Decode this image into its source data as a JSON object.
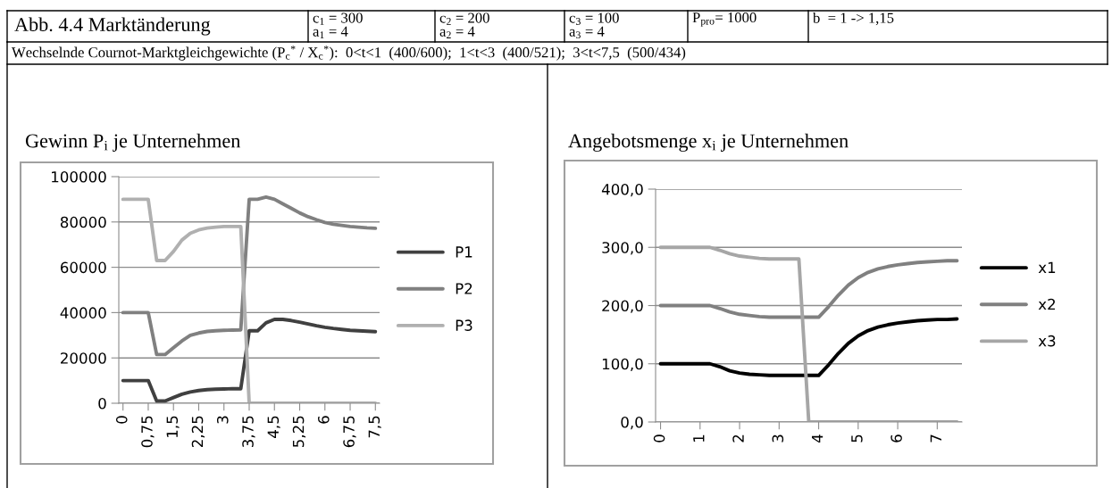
{
  "chart_data": [
    {
      "type": "other",
      "title": "Abb. 4.4 Marktänderung",
      "annotations": [
        "c$_{1}$ = 300\na$_{1}$ = 4",
        "c$_{2}$ = 200\na$_{2}$ = 4",
        "c$_{3}$ = 100\na$_{3}$ = 4",
        "P$_{pro}$= 1000",
        "b  = 1 -> 1,15",
        "Wechselnde Cournot-Marktgleichgewichte (P$_{c}$$^{*}$ / X$_{c}$$^{*}$):  0<t<1  (400/600);  1<t<3  (400/521);  3<t<7,5  (500/434)"
      ]
    },
    {
      "type": "line",
      "title": "Gewinn P$_{i}$ je Unternehmen",
      "x": [
        0,
        0.25,
        0.5,
        0.75,
        1,
        1.25,
        1.5,
        1.75,
        2,
        2.25,
        2.5,
        2.75,
        3,
        3.25,
        3.5,
        3.75,
        4,
        4.25,
        4.5,
        4.75,
        5,
        5.25,
        5.5,
        5.75,
        6,
        6.25,
        6.5,
        6.75,
        7,
        7.25,
        7.5
      ],
      "series": [
        {
          "name": "P1",
          "color": "#404040",
          "values": [
            10000,
            10000,
            10000,
            10000,
            1000,
            1000,
            2500,
            4000,
            5000,
            5600,
            6000,
            6200,
            6300,
            6400,
            6400,
            32000,
            32000,
            35500,
            37000,
            37000,
            36500,
            35800,
            35000,
            34200,
            33500,
            33000,
            32600,
            32200,
            32000,
            31800,
            31600
          ]
        },
        {
          "name": "P2",
          "color": "#808080",
          "values": [
            40000,
            40000,
            40000,
            40000,
            21500,
            21500,
            24500,
            27500,
            30000,
            31000,
            31700,
            32000,
            32200,
            32300,
            32400,
            90000,
            90000,
            91000,
            90000,
            88000,
            86000,
            84000,
            82300,
            81000,
            79800,
            79000,
            78500,
            78000,
            77700,
            77400,
            77200
          ]
        },
        {
          "name": "P3",
          "color": "#b0b0b0",
          "values": [
            90000,
            90000,
            90000,
            90000,
            63000,
            63000,
            67000,
            72000,
            75000,
            76500,
            77300,
            77700,
            78000,
            78000,
            78000,
            0,
            0,
            0,
            0,
            0,
            0,
            0,
            0,
            0,
            0,
            0,
            0,
            0,
            0,
            0,
            0
          ]
        }
      ],
      "xlim": [
        -0.125,
        7.625
      ],
      "xticks": [
        0,
        {
          "value": 0.75,
          "label": "0,75"
        },
        {
          "value": 1.5,
          "label": "1,5"
        },
        {
          "value": 2.25,
          "label": "2,25"
        },
        3,
        {
          "value": 3.75,
          "label": "3,75"
        },
        {
          "value": 4.5,
          "label": "4,5"
        },
        {
          "value": 5.25,
          "label": "5,25"
        },
        6,
        {
          "value": 6.75,
          "label": "6,75"
        },
        {
          "value": 7.5,
          "label": "7,5"
        }
      ],
      "ylim": [
        0,
        100000
      ],
      "yticks": [
        0,
        20000,
        40000,
        60000,
        80000,
        100000
      ],
      "grid": "y",
      "legend": "right",
      "marker": "none",
      "line_style": "solid"
    },
    {
      "type": "line",
      "title": "Angebotsmenge x$_{i}$ je Unternehmen",
      "x": [
        0,
        0.25,
        0.5,
        0.75,
        1,
        1.25,
        1.5,
        1.75,
        2,
        2.25,
        2.5,
        2.75,
        3,
        3.25,
        3.5,
        3.75,
        4,
        4.25,
        4.5,
        4.75,
        5,
        5.25,
        5.5,
        5.75,
        6,
        6.25,
        6.5,
        6.75,
        7,
        7.25,
        7.5
      ],
      "series": [
        {
          "name": "x1",
          "color": "#000000",
          "values": [
            100,
            100,
            100,
            100,
            100,
            100,
            95,
            88,
            84,
            82,
            81,
            80,
            80,
            80,
            80,
            80,
            80,
            98,
            118,
            135,
            148,
            157,
            163,
            167,
            170,
            172,
            174,
            175,
            176,
            176,
            177
          ]
        },
        {
          "name": "x2",
          "color": "#808080",
          "values": [
            200,
            200,
            200,
            200,
            200,
            200,
            195,
            189,
            185,
            183,
            181,
            180,
            180,
            180,
            180,
            180,
            180,
            198,
            218,
            235,
            248,
            257,
            263,
            267,
            270,
            272,
            274,
            275,
            276,
            277,
            277
          ]
        },
        {
          "name": "x3",
          "color": "#a6a6a6",
          "values": [
            300,
            300,
            300,
            300,
            300,
            300,
            295,
            289,
            285,
            283,
            281,
            280,
            280,
            280,
            280,
            0,
            0,
            0,
            0,
            0,
            0,
            0,
            0,
            0,
            0,
            0,
            0,
            0,
            0,
            0,
            0
          ]
        }
      ],
      "xlim": [
        -0.125,
        7.625
      ],
      "xticks": [
        0,
        1,
        2,
        3,
        4,
        5,
        6,
        7
      ],
      "ylim": [
        0,
        400
      ],
      "yticks": [
        {
          "value": 0,
          "label": "0,0"
        },
        {
          "value": 100,
          "label": "100,0"
        },
        {
          "value": 200,
          "label": "200,0"
        },
        {
          "value": 300,
          "label": "300,0"
        },
        {
          "value": 400,
          "label": "400,0"
        }
      ],
      "grid": "y",
      "legend": "right",
      "marker": "none",
      "line_style": "solid"
    }
  ]
}
